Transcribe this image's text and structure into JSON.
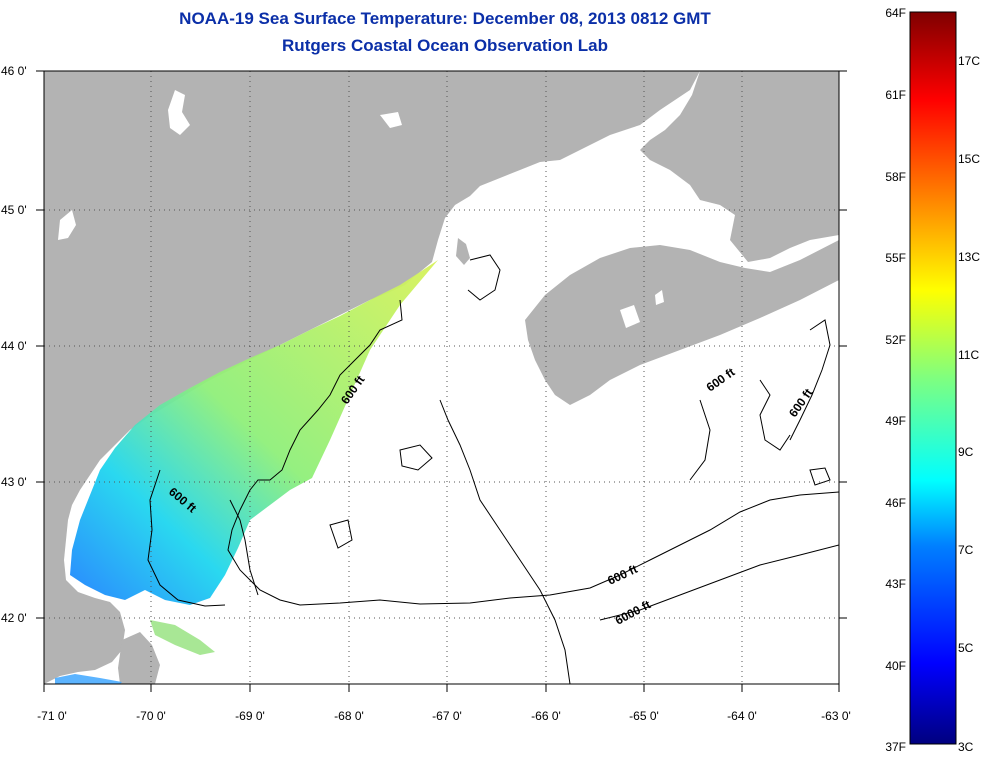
{
  "header": {
    "title": "NOAA-19 Sea Surface Temperature:  December 08, 2013 0812 GMT",
    "subtitle": "Rutgers Coastal Ocean Observation Lab"
  },
  "map": {
    "lon_range": [
      -71,
      -63
    ],
    "lat_range": [
      41.5,
      46
    ],
    "lon_ticks": [
      -71,
      -70,
      -69,
      -68,
      -67,
      -66,
      -65,
      -64,
      -63
    ],
    "lat_ticks": [
      46,
      45,
      44,
      43,
      42
    ],
    "lon_tick_labels": [
      "-71 0'",
      "-70 0'",
      "-69 0'",
      "-68 0'",
      "-67 0'",
      "-66 0'",
      "-65 0'",
      "-64 0'",
      "-63 0'"
    ],
    "lat_tick_labels": [
      "46 0'",
      "45 0'",
      "44 0'",
      "43 0'",
      "42 0'"
    ],
    "land_color": "#b3b3b3",
    "ocean_color": "#ffffff",
    "grid": "dotted",
    "contour_labels": [
      "600 ft",
      "600 ft",
      "600 ft",
      "600 ft",
      "600 ft",
      "6000 ft"
    ]
  },
  "colorbar": {
    "range_f": [
      37,
      64
    ],
    "range_c": [
      3,
      18
    ],
    "f_labels": [
      "64F",
      "61F",
      "58F",
      "55F",
      "52F",
      "49F",
      "46F",
      "43F",
      "40F",
      "37F"
    ],
    "c_labels": [
      "17C",
      "15C",
      "13C",
      "11C",
      "9C",
      "7C",
      "5C",
      "3C"
    ],
    "colormap": "jet"
  }
}
